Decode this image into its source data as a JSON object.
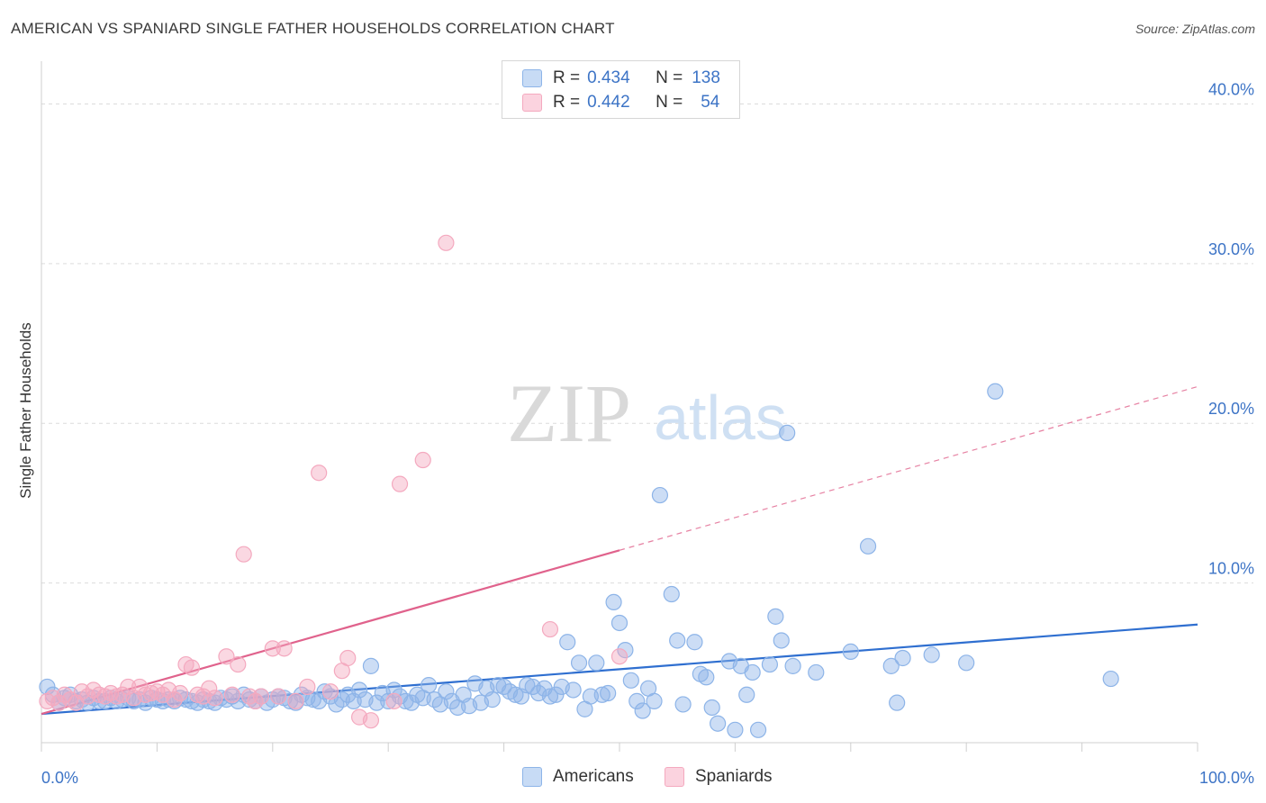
{
  "header": {
    "title": "AMERICAN VS SPANIARD SINGLE FATHER HOUSEHOLDS CORRELATION CHART",
    "source": "Source: ZipAtlas.com"
  },
  "watermark": {
    "zip": "ZIP",
    "atlas": "atlas"
  },
  "legend": {
    "r_label": "R =",
    "n_label": "N =",
    "rows": [
      {
        "r": "0.434",
        "n": "138",
        "color": "#8db4e8"
      },
      {
        "r": "0.442",
        "n": "54",
        "color": "#f4a9bf"
      }
    ]
  },
  "chart_data": {
    "type": "scatter",
    "title": "AMERICAN VS SPANIARD SINGLE FATHER HOUSEHOLDS CORRELATION CHART",
    "ylabel": "Single Father Households",
    "xlabel": "",
    "xlim": [
      0,
      100
    ],
    "ylim": [
      0,
      42
    ],
    "x_tick_labels": [
      "0.0%",
      "100.0%"
    ],
    "y_ticks": [
      10,
      20,
      30,
      40
    ],
    "y_tick_labels": [
      "10.0%",
      "20.0%",
      "30.0%",
      "40.0%"
    ],
    "grid": "horizontal dashed",
    "legend_position": "top-center and bottom",
    "series": [
      {
        "name": "Americans",
        "color": "#8db4e8",
        "line_color": "#2f6fd0",
        "R": 0.434,
        "N": 138,
        "trend": {
          "x0": 0,
          "y0": 1.8,
          "x1": 100,
          "y1": 7.4,
          "dashed_from": null
        },
        "points": [
          [
            0.5,
            3.5
          ],
          [
            1.0,
            3.0
          ],
          [
            1.5,
            2.5
          ],
          [
            2.0,
            2.8
          ],
          [
            2.5,
            3.0
          ],
          [
            3.0,
            2.6
          ],
          [
            3.5,
            2.7
          ],
          [
            4.0,
            2.5
          ],
          [
            4.5,
            2.8
          ],
          [
            5.0,
            2.6
          ],
          [
            5.5,
            2.6
          ],
          [
            6.0,
            2.8
          ],
          [
            6.5,
            2.6
          ],
          [
            7.0,
            2.7
          ],
          [
            7.5,
            2.8
          ],
          [
            8.0,
            2.6
          ],
          [
            8.5,
            2.7
          ],
          [
            9.0,
            2.5
          ],
          [
            9.5,
            2.8
          ],
          [
            10.0,
            2.7
          ],
          [
            10.5,
            2.6
          ],
          [
            11.0,
            2.7
          ],
          [
            11.5,
            2.6
          ],
          [
            12.0,
            2.8
          ],
          [
            12.5,
            2.7
          ],
          [
            13.0,
            2.6
          ],
          [
            13.5,
            2.5
          ],
          [
            14.0,
            2.7
          ],
          [
            14.5,
            2.6
          ],
          [
            15.0,
            2.5
          ],
          [
            15.5,
            2.8
          ],
          [
            16.0,
            2.7
          ],
          [
            16.5,
            2.9
          ],
          [
            17.0,
            2.6
          ],
          [
            17.5,
            3.0
          ],
          [
            18.0,
            2.7
          ],
          [
            18.5,
            2.6
          ],
          [
            19.0,
            2.9
          ],
          [
            19.5,
            2.5
          ],
          [
            20.0,
            2.7
          ],
          [
            20.5,
            2.9
          ],
          [
            21.0,
            2.8
          ],
          [
            21.5,
            2.6
          ],
          [
            22.0,
            2.5
          ],
          [
            22.5,
            3.0
          ],
          [
            23.0,
            2.8
          ],
          [
            23.5,
            2.7
          ],
          [
            24.0,
            2.6
          ],
          [
            24.5,
            3.2
          ],
          [
            25.0,
            2.9
          ],
          [
            25.5,
            2.4
          ],
          [
            26.0,
            2.7
          ],
          [
            26.5,
            3.0
          ],
          [
            27.0,
            2.6
          ],
          [
            27.5,
            3.3
          ],
          [
            28.0,
            2.7
          ],
          [
            28.5,
            4.8
          ],
          [
            29.0,
            2.5
          ],
          [
            29.5,
            3.1
          ],
          [
            30.0,
            2.6
          ],
          [
            30.5,
            3.3
          ],
          [
            31.0,
            2.9
          ],
          [
            31.5,
            2.6
          ],
          [
            32.0,
            2.5
          ],
          [
            32.5,
            3.0
          ],
          [
            33.0,
            2.8
          ],
          [
            33.5,
            3.6
          ],
          [
            34.0,
            2.7
          ],
          [
            34.5,
            2.4
          ],
          [
            35.0,
            3.2
          ],
          [
            35.5,
            2.6
          ],
          [
            36.0,
            2.2
          ],
          [
            36.5,
            3.0
          ],
          [
            37.0,
            2.3
          ],
          [
            37.5,
            3.7
          ],
          [
            38.0,
            2.5
          ],
          [
            38.5,
            3.4
          ],
          [
            39.0,
            2.7
          ],
          [
            39.5,
            3.6
          ],
          [
            40.0,
            3.5
          ],
          [
            40.5,
            3.2
          ],
          [
            41.0,
            3.0
          ],
          [
            41.5,
            2.9
          ],
          [
            42.0,
            3.6
          ],
          [
            42.5,
            3.5
          ],
          [
            43.0,
            3.1
          ],
          [
            43.5,
            3.4
          ],
          [
            44.0,
            2.9
          ],
          [
            44.5,
            3.0
          ],
          [
            45.0,
            3.5
          ],
          [
            45.5,
            6.3
          ],
          [
            46.0,
            3.3
          ],
          [
            46.5,
            5.0
          ],
          [
            47.0,
            2.1
          ],
          [
            47.5,
            2.9
          ],
          [
            48.0,
            5.0
          ],
          [
            48.5,
            3.0
          ],
          [
            49.0,
            3.1
          ],
          [
            49.5,
            8.8
          ],
          [
            50.0,
            7.5
          ],
          [
            50.5,
            5.8
          ],
          [
            51.0,
            3.9
          ],
          [
            51.5,
            2.6
          ],
          [
            52.0,
            2.0
          ],
          [
            52.5,
            3.4
          ],
          [
            53.0,
            2.6
          ],
          [
            53.5,
            15.5
          ],
          [
            54.5,
            9.3
          ],
          [
            55.0,
            6.4
          ],
          [
            55.5,
            2.4
          ],
          [
            56.5,
            6.3
          ],
          [
            57.0,
            4.3
          ],
          [
            57.5,
            4.1
          ],
          [
            58.0,
            2.2
          ],
          [
            58.5,
            1.2
          ],
          [
            59.5,
            5.1
          ],
          [
            60.0,
            0.8
          ],
          [
            60.5,
            4.8
          ],
          [
            61.0,
            3.0
          ],
          [
            61.5,
            4.4
          ],
          [
            62.0,
            0.8
          ],
          [
            63.0,
            4.9
          ],
          [
            63.5,
            7.9
          ],
          [
            64.0,
            6.4
          ],
          [
            64.5,
            19.4
          ],
          [
            65.0,
            4.8
          ],
          [
            67.0,
            4.4
          ],
          [
            70.0,
            5.7
          ],
          [
            71.5,
            12.3
          ],
          [
            73.5,
            4.8
          ],
          [
            74.0,
            2.5
          ],
          [
            74.5,
            5.3
          ],
          [
            77.0,
            5.5
          ],
          [
            80.0,
            5.0
          ],
          [
            82.5,
            22.0
          ],
          [
            92.5,
            4.0
          ]
        ]
      },
      {
        "name": "Spaniards",
        "color": "#f4a9bf",
        "line_color": "#e0628c",
        "R": 0.442,
        "N": 54,
        "trend": {
          "x0": 0,
          "y0": 1.8,
          "x1": 100,
          "y1": 22.3,
          "dashed_from": 50
        },
        "points": [
          [
            0.5,
            2.6
          ],
          [
            1.0,
            2.8
          ],
          [
            1.5,
            2.5
          ],
          [
            2.0,
            3.0
          ],
          [
            2.5,
            2.7
          ],
          [
            3.0,
            2.5
          ],
          [
            3.5,
            3.2
          ],
          [
            4.0,
            2.9
          ],
          [
            4.5,
            3.3
          ],
          [
            5.0,
            3.0
          ],
          [
            5.5,
            2.9
          ],
          [
            6.0,
            3.1
          ],
          [
            6.5,
            2.9
          ],
          [
            7.0,
            3.0
          ],
          [
            7.5,
            3.5
          ],
          [
            8.0,
            2.8
          ],
          [
            8.5,
            3.5
          ],
          [
            9.0,
            3.0
          ],
          [
            9.5,
            3.1
          ],
          [
            10.0,
            3.2
          ],
          [
            10.5,
            3.0
          ],
          [
            11.0,
            3.3
          ],
          [
            11.5,
            2.7
          ],
          [
            12.0,
            3.1
          ],
          [
            12.5,
            4.9
          ],
          [
            13.0,
            4.7
          ],
          [
            13.5,
            3.0
          ],
          [
            14.0,
            2.9
          ],
          [
            14.5,
            3.4
          ],
          [
            15.0,
            2.8
          ],
          [
            16.0,
            5.4
          ],
          [
            16.5,
            3.0
          ],
          [
            17.0,
            4.9
          ],
          [
            17.5,
            11.8
          ],
          [
            18.0,
            2.9
          ],
          [
            18.5,
            2.6
          ],
          [
            19.0,
            2.9
          ],
          [
            20.0,
            5.9
          ],
          [
            20.5,
            2.9
          ],
          [
            21.0,
            5.9
          ],
          [
            22.0,
            2.6
          ],
          [
            23.0,
            3.5
          ],
          [
            24.0,
            16.9
          ],
          [
            25.0,
            3.2
          ],
          [
            26.0,
            4.5
          ],
          [
            26.5,
            5.3
          ],
          [
            27.5,
            1.6
          ],
          [
            28.5,
            1.4
          ],
          [
            30.5,
            2.6
          ],
          [
            31.0,
            16.2
          ],
          [
            33.0,
            17.7
          ],
          [
            35.0,
            31.3
          ],
          [
            44.0,
            7.1
          ],
          [
            50.0,
            5.4
          ]
        ]
      }
    ]
  },
  "bottom_legend": {
    "items": [
      "Americans",
      "Spaniards"
    ]
  }
}
